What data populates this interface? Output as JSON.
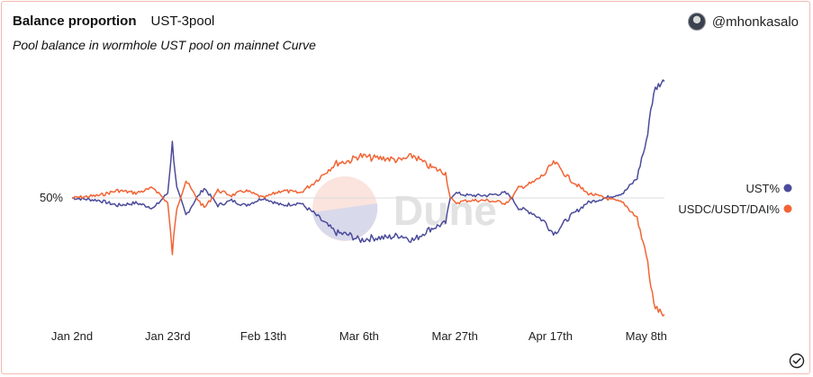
{
  "header": {
    "title": "Balance proportion",
    "query_name": "UST-3pool",
    "subtitle": "Pool balance in wormhole UST pool on mainnet Curve",
    "author": "@mhonkasalo"
  },
  "watermark": "Dune",
  "colors": {
    "ust": "#4b4b9b",
    "usdc": "#f26434",
    "border": "#f2b9b0",
    "reference_line": "#dddddd"
  },
  "icons": {
    "avatar": "avatar-icon",
    "status": "check-circle-icon"
  },
  "chart_data": {
    "type": "line",
    "title": "Balance proportion",
    "xlabel": "",
    "ylabel": "",
    "x_ticks": [
      "Jan 2nd",
      "Jan 23rd",
      "Feb 13th",
      "Mar 6th",
      "Mar 27th",
      "Apr 17th",
      "May 8th"
    ],
    "x_range": [
      "2022-01-02",
      "2022-05-12"
    ],
    "y_range": [
      0,
      100
    ],
    "y_reference": {
      "value": 50,
      "label": "50%"
    },
    "legend_position": "right",
    "series": [
      {
        "name": "UST%",
        "color": "#4b4b9b",
        "points": [
          [
            "2022-01-02",
            50
          ],
          [
            "2022-01-08",
            49
          ],
          [
            "2022-01-12",
            47
          ],
          [
            "2022-01-16",
            48
          ],
          [
            "2022-01-20",
            46
          ],
          [
            "2022-01-23",
            52
          ],
          [
            "2022-01-24",
            72
          ],
          [
            "2022-01-25",
            54
          ],
          [
            "2022-01-27",
            43
          ],
          [
            "2022-01-29",
            49
          ],
          [
            "2022-01-31",
            54
          ],
          [
            "2022-02-03",
            47
          ],
          [
            "2022-02-06",
            49
          ],
          [
            "2022-02-09",
            47
          ],
          [
            "2022-02-13",
            50
          ],
          [
            "2022-02-17",
            47
          ],
          [
            "2022-02-21",
            48
          ],
          [
            "2022-02-24",
            44
          ],
          [
            "2022-02-27",
            39
          ],
          [
            "2022-03-01",
            36
          ],
          [
            "2022-03-04",
            35
          ],
          [
            "2022-03-06",
            33
          ],
          [
            "2022-03-09",
            34
          ],
          [
            "2022-03-12",
            34
          ],
          [
            "2022-03-15",
            35
          ],
          [
            "2022-03-18",
            33
          ],
          [
            "2022-03-21",
            37
          ],
          [
            "2022-03-25",
            40
          ],
          [
            "2022-03-26",
            50
          ],
          [
            "2022-03-27",
            52
          ],
          [
            "2022-03-30",
            51
          ],
          [
            "2022-04-03",
            51
          ],
          [
            "2022-04-07",
            52
          ],
          [
            "2022-04-08",
            51
          ],
          [
            "2022-04-10",
            46
          ],
          [
            "2022-04-13",
            44
          ],
          [
            "2022-04-16",
            40
          ],
          [
            "2022-04-17",
            37
          ],
          [
            "2022-04-18",
            36
          ],
          [
            "2022-04-21",
            42
          ],
          [
            "2022-04-25",
            48
          ],
          [
            "2022-04-29",
            50
          ],
          [
            "2022-05-03",
            52
          ],
          [
            "2022-05-06",
            58
          ],
          [
            "2022-05-07",
            66
          ],
          [
            "2022-05-08",
            72
          ],
          [
            "2022-05-09",
            86
          ],
          [
            "2022-05-10",
            94
          ],
          [
            "2022-05-11",
            96
          ],
          [
            "2022-05-12",
            97
          ]
        ]
      },
      {
        "name": "USDC/USDT/DAI%",
        "color": "#f26434",
        "points": [
          [
            "2022-01-02",
            50
          ],
          [
            "2022-01-08",
            51
          ],
          [
            "2022-01-12",
            53
          ],
          [
            "2022-01-16",
            52
          ],
          [
            "2022-01-20",
            54
          ],
          [
            "2022-01-23",
            48
          ],
          [
            "2022-01-24",
            28
          ],
          [
            "2022-01-25",
            46
          ],
          [
            "2022-01-27",
            57
          ],
          [
            "2022-01-29",
            51
          ],
          [
            "2022-01-31",
            46
          ],
          [
            "2022-02-03",
            53
          ],
          [
            "2022-02-06",
            51
          ],
          [
            "2022-02-09",
            53
          ],
          [
            "2022-02-13",
            50
          ],
          [
            "2022-02-17",
            53
          ],
          [
            "2022-02-21",
            52
          ],
          [
            "2022-02-24",
            56
          ],
          [
            "2022-02-27",
            61
          ],
          [
            "2022-03-01",
            64
          ],
          [
            "2022-03-04",
            65
          ],
          [
            "2022-03-06",
            67
          ],
          [
            "2022-03-09",
            66
          ],
          [
            "2022-03-12",
            66
          ],
          [
            "2022-03-15",
            65
          ],
          [
            "2022-03-18",
            67
          ],
          [
            "2022-03-21",
            63
          ],
          [
            "2022-03-25",
            60
          ],
          [
            "2022-03-26",
            50
          ],
          [
            "2022-03-27",
            48
          ],
          [
            "2022-03-30",
            49
          ],
          [
            "2022-04-03",
            49
          ],
          [
            "2022-04-07",
            48
          ],
          [
            "2022-04-08",
            49
          ],
          [
            "2022-04-10",
            54
          ],
          [
            "2022-04-13",
            56
          ],
          [
            "2022-04-16",
            60
          ],
          [
            "2022-04-17",
            63
          ],
          [
            "2022-04-18",
            64
          ],
          [
            "2022-04-21",
            58
          ],
          [
            "2022-04-25",
            52
          ],
          [
            "2022-04-29",
            50
          ],
          [
            "2022-05-03",
            48
          ],
          [
            "2022-05-06",
            42
          ],
          [
            "2022-05-07",
            34
          ],
          [
            "2022-05-08",
            28
          ],
          [
            "2022-05-09",
            14
          ],
          [
            "2022-05-10",
            6
          ],
          [
            "2022-05-11",
            4
          ],
          [
            "2022-05-12",
            3
          ]
        ]
      }
    ]
  }
}
